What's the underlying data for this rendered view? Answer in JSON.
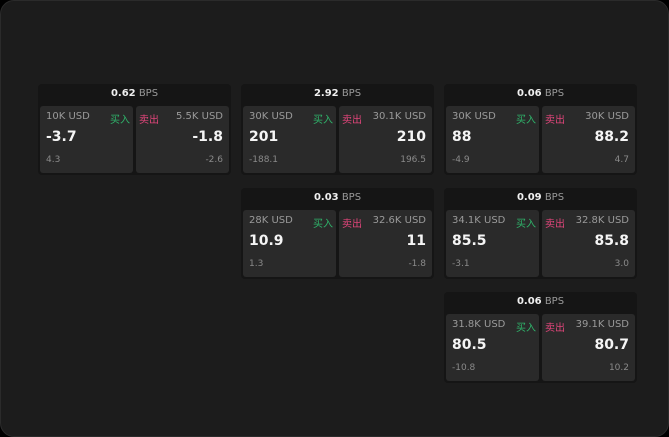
{
  "unit": "BPS",
  "buy_label": "买入",
  "sell_label": "卖出",
  "colors": {
    "buy": "#2fb36a",
    "sell": "#e0457a",
    "background": "#1c1c1c"
  },
  "cards": [
    {
      "spread": "0.62",
      "bid": {
        "size": "10K USD",
        "price": "-3.7",
        "change": "4.3"
      },
      "ask": {
        "size": "5.5K USD",
        "price": "-1.8",
        "change": "-2.6"
      }
    },
    {
      "spread": "2.92",
      "bid": {
        "size": "30K USD",
        "price": "201",
        "change": "-188.1"
      },
      "ask": {
        "size": "30.1K USD",
        "price": "210",
        "change": "196.5"
      }
    },
    {
      "spread": "0.06",
      "bid": {
        "size": "30K USD",
        "price": "88",
        "change": "-4.9"
      },
      "ask": {
        "size": "30K USD",
        "price": "88.2",
        "change": "4.7"
      }
    },
    {
      "spread": "0.03",
      "bid": {
        "size": "28K USD",
        "price": "10.9",
        "change": "1.3"
      },
      "ask": {
        "size": "32.6K USD",
        "price": "11",
        "change": "-1.8"
      }
    },
    {
      "spread": "0.09",
      "bid": {
        "size": "34.1K USD",
        "price": "85.5",
        "change": "-3.1"
      },
      "ask": {
        "size": "32.8K USD",
        "price": "85.8",
        "change": "3.0"
      }
    },
    {
      "spread": "0.06",
      "bid": {
        "size": "31.8K USD",
        "price": "80.5",
        "change": "-10.8"
      },
      "ask": {
        "size": "39.1K USD",
        "price": "80.7",
        "change": "10.2"
      }
    }
  ]
}
